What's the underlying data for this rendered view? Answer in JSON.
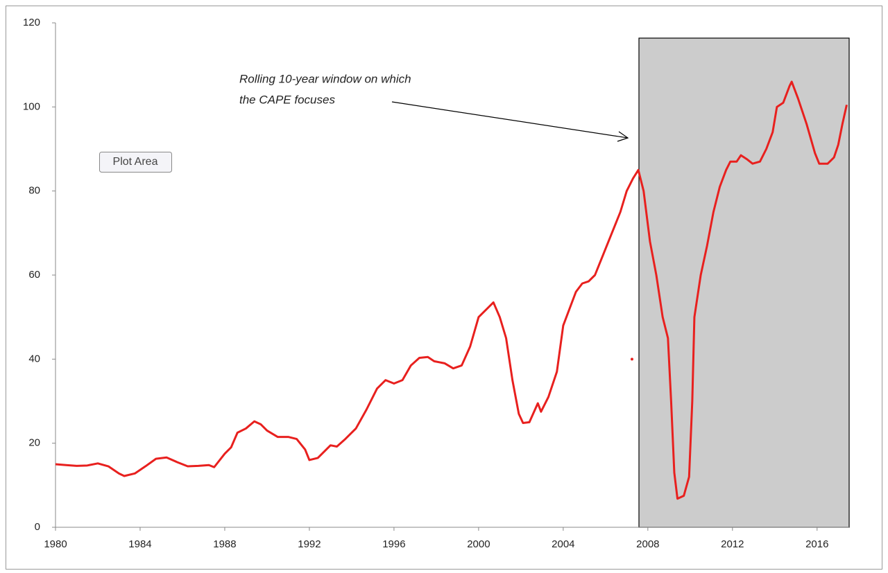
{
  "chart_data": {
    "type": "line",
    "annotation": [
      "Rolling 10-year window on which",
      "the CAPE focuses"
    ],
    "tooltip": "Plot Area",
    "x": [
      1980.0,
      1980.5,
      1981.0,
      1981.5,
      1982.0,
      1982.5,
      1983.0,
      1983.25,
      1983.75,
      1984.25,
      1984.75,
      1985.25,
      1985.75,
      1986.25,
      1986.75,
      1987.25,
      1987.5,
      1988.0,
      1988.3,
      1988.6,
      1989.0,
      1989.4,
      1989.7,
      1990.0,
      1990.5,
      1991.0,
      1991.4,
      1991.8,
      1992.0,
      1992.4,
      1993.0,
      1993.3,
      1993.7,
      1994.2,
      1994.7,
      1995.2,
      1995.6,
      1996.0,
      1996.4,
      1996.8,
      1997.2,
      1997.6,
      1997.9,
      1998.4,
      1998.8,
      1999.2,
      1999.6,
      2000.0,
      2000.4,
      2000.7,
      2001.0,
      2001.3,
      2001.6,
      2001.9,
      2002.1,
      2002.4,
      2002.8,
      2002.95,
      2003.3,
      2003.7,
      2004.0,
      2004.3,
      2004.6,
      2004.9,
      2005.2,
      2005.5,
      2005.9,
      2006.3,
      2006.7,
      2007.0,
      2007.3,
      2007.55,
      2007.8,
      2008.1,
      2008.4,
      2008.7,
      2008.95,
      2009.1,
      2009.25,
      2009.4,
      2009.7,
      2009.95,
      2010.1,
      2010.2,
      2010.5,
      2010.8,
      2011.1,
      2011.4,
      2011.7,
      2011.9,
      2012.2,
      2012.4,
      2012.7,
      2012.95,
      2013.3,
      2013.6,
      2013.9,
      2014.1,
      2014.4,
      2014.7,
      2014.8,
      2015.1,
      2015.5,
      2015.9,
      2016.1,
      2016.5,
      2016.8,
      2017.0,
      2017.2,
      2017.4
    ],
    "series": [
      {
        "color": "#e8201e",
        "values": [
          15,
          14.8,
          14.6,
          14.7,
          15.2,
          14.5,
          12.8,
          12.2,
          12.8,
          14.5,
          16.3,
          16.6,
          15.5,
          14.5,
          14.6,
          14.8,
          14.3,
          17.5,
          19,
          22.5,
          23.5,
          25.2,
          24.5,
          23,
          21.5,
          21.5,
          21,
          18.5,
          16,
          16.5,
          19.5,
          19.2,
          21,
          23.5,
          28,
          33,
          35,
          34.2,
          35,
          38.5,
          40.3,
          40.5,
          39.5,
          39,
          37.8,
          38.5,
          43,
          50,
          52,
          53.5,
          50,
          45,
          35,
          27,
          24.8,
          25,
          29.5,
          27.5,
          31,
          37,
          48,
          52,
          56,
          58,
          58.5,
          60,
          65,
          70,
          75,
          80,
          83,
          85,
          80,
          68,
          60,
          50,
          45,
          30,
          13,
          6.8,
          7.5,
          12,
          30,
          50,
          60,
          67,
          75,
          81,
          85,
          87,
          87,
          88.5,
          87.5,
          86.5,
          87,
          90,
          94,
          100,
          101,
          105,
          106,
          102,
          96,
          89,
          86.5,
          86.5,
          88,
          91,
          96,
          100.5
        ]
      }
    ],
    "point": {
      "x": 2007.25,
      "y": 40
    },
    "xlim": [
      1980,
      2017.45
    ],
    "xticks": [
      1980,
      1984,
      1988,
      1992,
      1996,
      2000,
      2004,
      2008,
      2012,
      2016
    ],
    "ylim": [
      0,
      120
    ],
    "yticks": [
      0,
      20,
      40,
      60,
      80,
      100,
      120
    ],
    "grid": false
  }
}
